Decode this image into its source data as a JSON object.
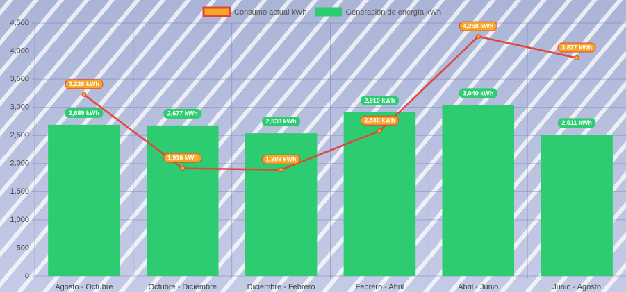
{
  "chart_data": {
    "type": "bar",
    "categories": [
      "Agosto - Octubre",
      "Octubre - Diciembre",
      "Diciembre - Febrero",
      "Febrero - Abril",
      "Abril - Junio",
      "Junio - Agosto"
    ],
    "series": [
      {
        "name": "Consumo actual kWh",
        "type": "line",
        "color": "#f5a623",
        "border_color": "#e0463a",
        "values": [
          3226,
          1916,
          1889,
          2580,
          4258,
          3877
        ],
        "value_labels": [
          "3,226 kWh",
          "1,916 kWh",
          "1,889 kWh",
          "2,580 kWh",
          "4,258 kWh",
          "3,877 kWh"
        ]
      },
      {
        "name": "Generación de energía kWh",
        "type": "bar",
        "color": "#2ecc71",
        "values": [
          2689,
          2677,
          2538,
          2910,
          3040,
          2511
        ],
        "value_labels": [
          "2,689 kWh",
          "2,677 kWh",
          "2,538 kWh",
          "2,910 kWh",
          "3,040 kWh",
          "2,511 kWh"
        ]
      }
    ],
    "ylim": [
      0,
      4500
    ],
    "yticks": [
      0,
      500,
      {
        "value": 1000,
        "label": "1,000"
      },
      {
        "value": 1500,
        "label": "1,500"
      },
      {
        "value": 2000,
        "label": "2,000"
      },
      {
        "value": 2500,
        "label": "2,500"
      },
      {
        "value": 3000,
        "label": "3,000"
      },
      {
        "value": 3500,
        "label": "3,500"
      },
      {
        "value": 4000,
        "label": "4,000"
      },
      {
        "value": 4500,
        "label": "4,500"
      }
    ],
    "grid": true,
    "legend": "top"
  }
}
